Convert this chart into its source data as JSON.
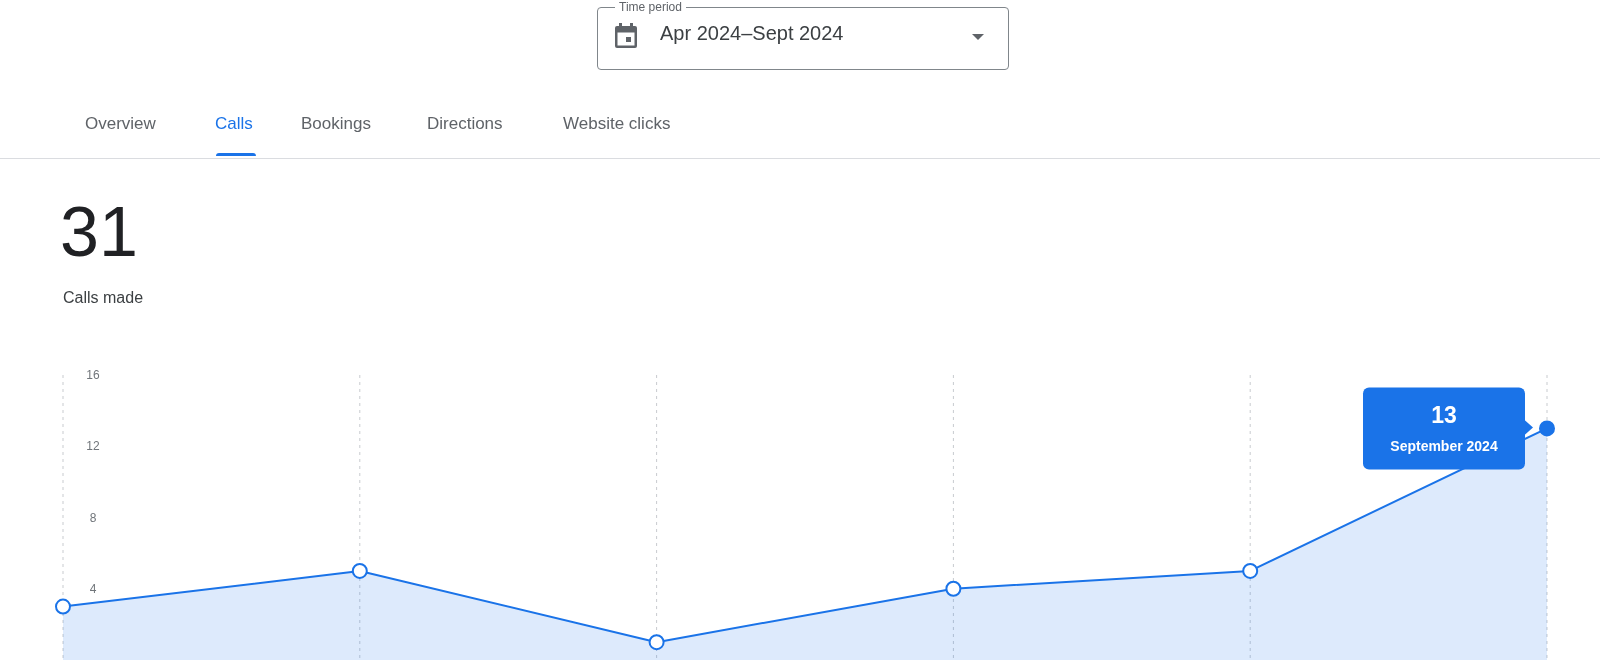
{
  "chart_data": {
    "type": "area",
    "title": "31",
    "subtitle": "Calls made",
    "categories": [
      null,
      null,
      null,
      null,
      null,
      null
    ],
    "series": [
      {
        "color": "#1a73e8",
        "values": [
          3,
          5,
          1,
          4,
          5,
          13
        ]
      }
    ],
    "ylim": [
      0,
      16
    ],
    "yticks": [
      4,
      8,
      12,
      16
    ],
    "grid": "x",
    "marker": "circle",
    "legend": false,
    "annotations": [
      "Time period",
      "Apr 2024–Sept 2024",
      "Overview",
      "Calls",
      "Bookings",
      "Directions",
      "Website clicks",
      "13",
      "September 2024"
    ]
  }
}
